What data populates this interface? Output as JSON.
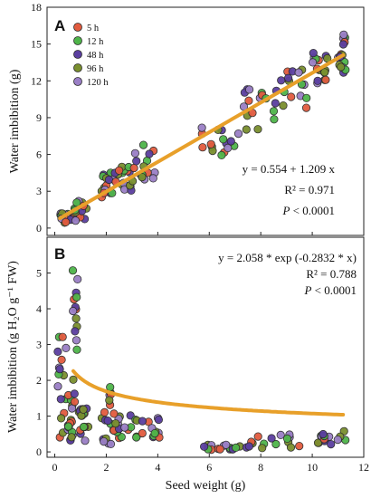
{
  "colors": {
    "5 h": "#e25b3f",
    "12 h": "#4fb54a",
    "48 h": "#5b3fa0",
    "96 h": "#7a8f2e",
    "120 h": "#9a7fc6",
    "fit_line": "#e8a02a"
  },
  "chart_data": [
    {
      "panel": "A",
      "type": "scatter",
      "xlabel": "",
      "ylabel": "Water imbibition (g)",
      "xlim": [
        -0.3,
        12
      ],
      "ylim": [
        -0.6,
        18
      ],
      "x_ticks": [
        0,
        2,
        4,
        6,
        8,
        10,
        12
      ],
      "y_ticks": [
        0,
        3,
        6,
        9,
        12,
        15,
        18
      ],
      "legend": {
        "placement": "top-left",
        "entries": [
          "5 h",
          "12 h",
          "48 h",
          "96 h",
          "120 h"
        ]
      },
      "clusters": [
        {
          "x": [
            0.2,
            0.7
          ],
          "y": [
            0.4,
            1.2
          ]
        },
        {
          "x": [
            0.7,
            1.3
          ],
          "y": [
            0.6,
            2.2
          ]
        },
        {
          "x": [
            1.7,
            2.3
          ],
          "y": [
            2.4,
            4.6
          ]
        },
        {
          "x": [
            2.3,
            3.0
          ],
          "y": [
            3.0,
            5.0
          ]
        },
        {
          "x": [
            3.0,
            3.9
          ],
          "y": [
            3.8,
            6.8
          ]
        },
        {
          "x": [
            5.7,
            7.2
          ],
          "y": [
            5.8,
            8.2
          ]
        },
        {
          "x": [
            7.3,
            8.6
          ],
          "y": [
            8.0,
            11.5
          ]
        },
        {
          "x": [
            8.6,
            9.8
          ],
          "y": [
            9.8,
            13.2
          ]
        },
        {
          "x": [
            10.0,
            10.6
          ],
          "y": [
            11.5,
            14.8
          ]
        },
        {
          "x": [
            11.0,
            11.3
          ],
          "y": [
            12.4,
            16.0
          ]
        }
      ],
      "fit": {
        "equation": "y = 0.554 + 1.209 x",
        "intercept": 0.554,
        "slope": 1.209
      },
      "r2_label": "R² = 0.971",
      "p_label": "P",
      "p_value": " < 0.0001"
    },
    {
      "panel": "B",
      "type": "scatter",
      "xlabel": "Seed weight (g)",
      "ylabel": "Water imbibition (g H₂O g⁻¹ FW)",
      "xlim": [
        -0.3,
        12
      ],
      "ylim": [
        -0.15,
        6
      ],
      "x_ticks": [
        0,
        2,
        4,
        6,
        8,
        10,
        12
      ],
      "y_ticks": [
        0,
        1,
        2,
        3,
        4,
        5
      ],
      "clusters": [
        {
          "x": [
            0.1,
            0.5
          ],
          "y": [
            0.4,
            3.3
          ]
        },
        {
          "x": [
            0.5,
            0.7
          ],
          "y": [
            0.1,
            1.6
          ]
        },
        {
          "x": [
            0.7,
            0.9
          ],
          "y": [
            1.4,
            5.3
          ]
        },
        {
          "x": [
            0.9,
            1.3
          ],
          "y": [
            0.3,
            1.6
          ]
        },
        {
          "x": [
            1.8,
            2.2
          ],
          "y": [
            0.2,
            2.0
          ]
        },
        {
          "x": [
            2.2,
            3.0
          ],
          "y": [
            0.3,
            1.1
          ]
        },
        {
          "x": [
            3.0,
            4.1
          ],
          "y": [
            0.4,
            0.95
          ]
        },
        {
          "x": [
            5.7,
            7.2
          ],
          "y": [
            0.05,
            0.2
          ]
        },
        {
          "x": [
            7.3,
            9.8
          ],
          "y": [
            0.1,
            0.5
          ]
        },
        {
          "x": [
            10.0,
            11.3
          ],
          "y": [
            0.2,
            0.6
          ]
        }
      ],
      "fit": {
        "equation": "y = 2.058 * exp (-0.2832 * x)",
        "a": 2.058,
        "b": -0.2832
      },
      "r2_label": "R² = 0.788",
      "p_label": "P",
      "p_value": " < 0.0001"
    }
  ]
}
